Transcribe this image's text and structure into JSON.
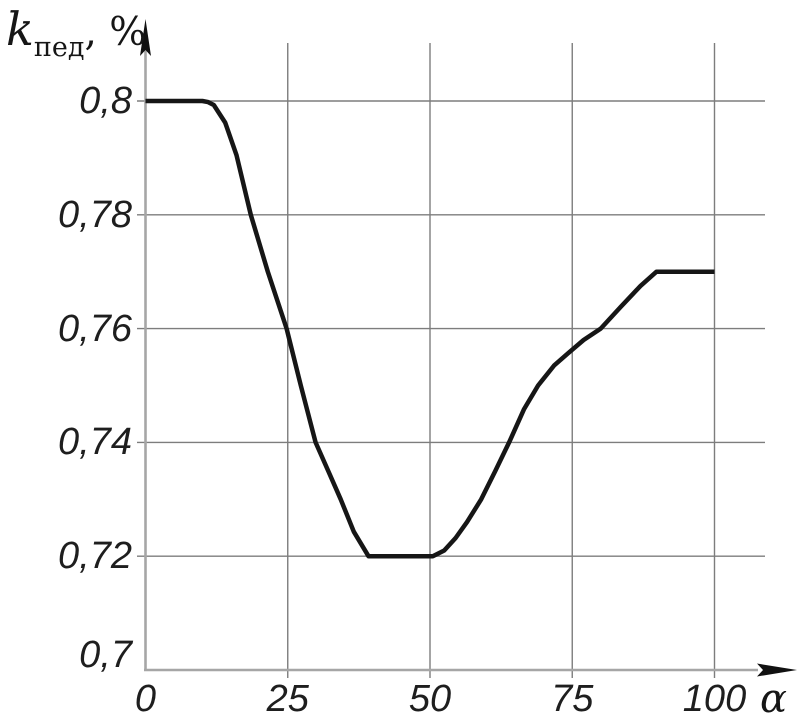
{
  "title": {
    "symbol": "k",
    "subscript": "пед",
    "suffix": ", %"
  },
  "axes": {
    "y": {
      "title_plain": "kпед, %",
      "ticks": [
        {
          "label": "0,8",
          "value": 0.8
        },
        {
          "label": "0,78",
          "value": 0.78
        },
        {
          "label": "0,76",
          "value": 0.76
        },
        {
          "label": "0,74",
          "value": 0.74
        },
        {
          "label": "0,72",
          "value": 0.72
        },
        {
          "label": "0,7",
          "value": 0.7
        }
      ]
    },
    "x": {
      "label": "α",
      "ticks": [
        {
          "label": "0",
          "value": 0
        },
        {
          "label": "25",
          "value": 25
        },
        {
          "label": "50",
          "value": 50
        },
        {
          "label": "75",
          "value": 75
        },
        {
          "label": "100",
          "value": 100
        }
      ]
    }
  },
  "colors": {
    "background": "#ffffff",
    "grid": "#7d7d7d",
    "axis": "#a6a6a6",
    "curve": "#161616",
    "arrow": "#111111",
    "text": "#1e1e1e"
  },
  "chart_data": {
    "type": "line",
    "title": "",
    "xlabel": "α",
    "ylabel": "kпед, %",
    "xlim": [
      0,
      100
    ],
    "ylim": [
      0.7,
      0.81
    ],
    "x_ticks": [
      0,
      25,
      50,
      75,
      100
    ],
    "y_ticks": [
      0.7,
      0.72,
      0.74,
      0.76,
      0.78,
      0.8
    ],
    "grid": true,
    "legend": "none",
    "series": [
      {
        "name": "k_ped_vs_alpha",
        "points": [
          [
            0,
            0.8
          ],
          [
            10,
            0.8
          ],
          [
            11,
            0.7998
          ],
          [
            12,
            0.7993
          ],
          [
            14,
            0.7962
          ],
          [
            16,
            0.7905
          ],
          [
            18.5,
            0.78
          ],
          [
            21.5,
            0.77
          ],
          [
            24.8,
            0.76
          ],
          [
            27.3,
            0.75
          ],
          [
            29.9,
            0.74
          ],
          [
            32.2,
            0.7348
          ],
          [
            34.3,
            0.73
          ],
          [
            36.6,
            0.7243
          ],
          [
            39.2,
            0.72
          ],
          [
            50.5,
            0.72
          ],
          [
            52.5,
            0.721
          ],
          [
            54.5,
            0.7232
          ],
          [
            56.5,
            0.726
          ],
          [
            59,
            0.73
          ],
          [
            61.5,
            0.735
          ],
          [
            63.9,
            0.74
          ],
          [
            66.5,
            0.7458
          ],
          [
            69,
            0.75
          ],
          [
            71.8,
            0.7535
          ],
          [
            74.3,
            0.7557
          ],
          [
            77,
            0.758
          ],
          [
            80,
            0.76
          ],
          [
            83.5,
            0.7638
          ],
          [
            87,
            0.7675
          ],
          [
            89.8,
            0.77
          ],
          [
            100,
            0.77
          ]
        ]
      }
    ],
    "annotations": {
      "flat_start": "k = 0.8 for α in [0,10]",
      "minimum_plateau": "k = 0.72 for α in [40,50]",
      "flat_end": "k = 0.77 for α in [90,100]"
    }
  }
}
